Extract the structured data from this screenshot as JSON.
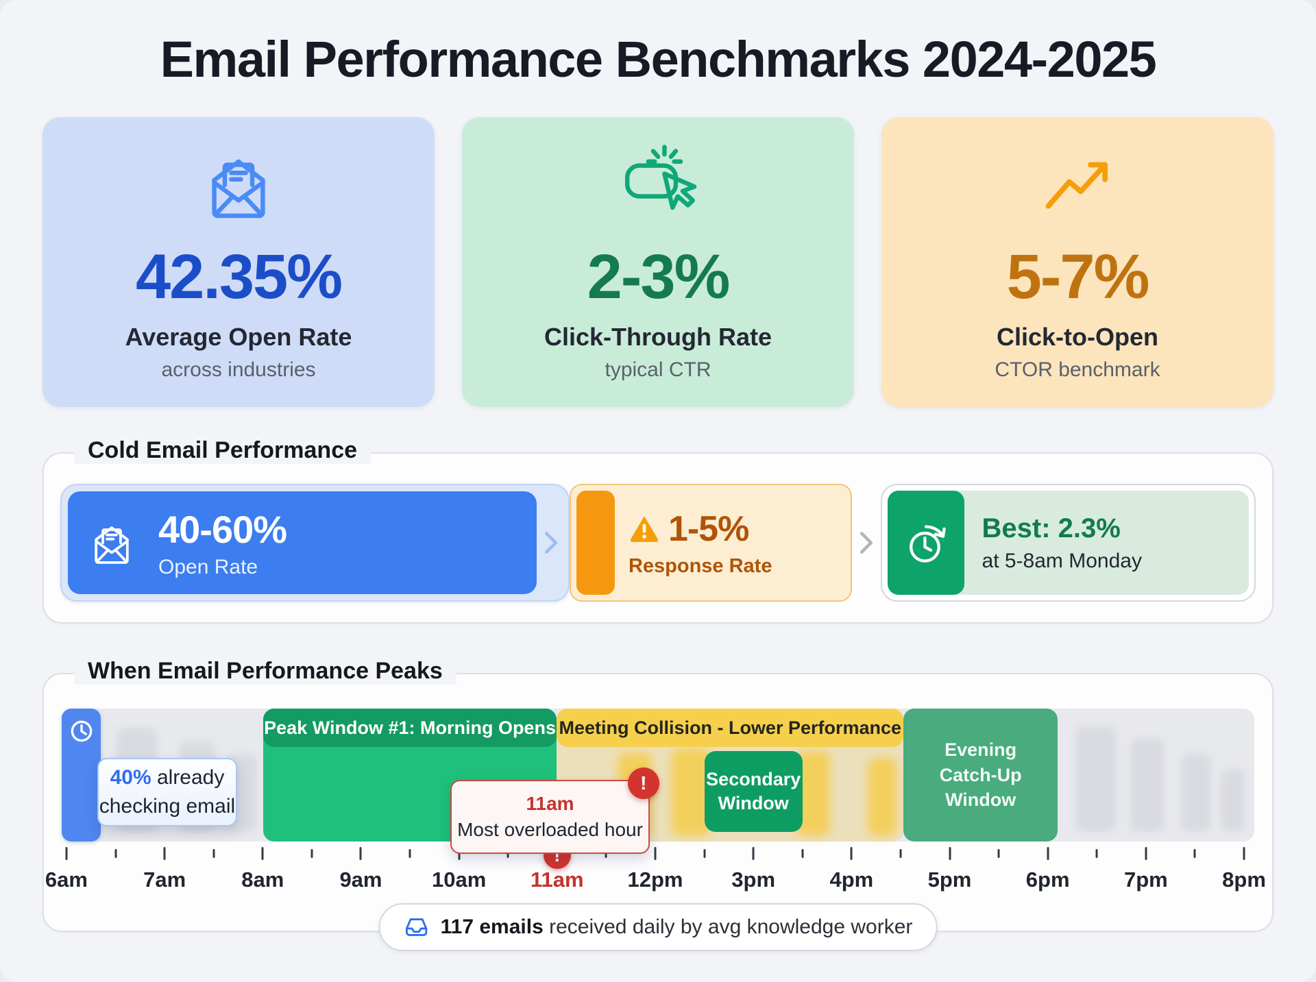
{
  "title": "Email Performance Benchmarks 2024-2025",
  "stats": [
    {
      "icon": "open-envelope-icon",
      "value": "42.35%",
      "label": "Average Open Rate",
      "sub": "across industries"
    },
    {
      "icon": "cursor-click-icon",
      "value": "2-3%",
      "label": "Click-Through Rate",
      "sub": "typical CTR"
    },
    {
      "icon": "trending-up-icon",
      "value": "5-7%",
      "label": "Click-to-Open",
      "sub": "CTOR benchmark"
    }
  ],
  "cold_email": {
    "section_title": "Cold Email Performance",
    "open_rate": {
      "icon": "open-envelope-icon",
      "value": "40-60%",
      "label": "Open Rate"
    },
    "response_rate": {
      "icon": "warning-triangle-icon",
      "value": "1-5%",
      "label": "Response Rate"
    },
    "best_time": {
      "icon": "clock-history-icon",
      "value": "Best: 2.3%",
      "label": "at 5-8am Monday"
    }
  },
  "peaks": {
    "section_title": "When Email Performance Peaks",
    "morning_note": {
      "highlight": "40%",
      "text": "already checking email",
      "icon": "clock-icon"
    },
    "peak_window_1": "Peak Window #1: Morning Opens",
    "collision": "Meeting Collision - Lower Performance",
    "overloaded": {
      "time": "11am",
      "text": "Most overloaded hour",
      "badge": "!"
    },
    "secondary": "Secondary Window",
    "evening": "Evening Catch-Up Window",
    "axis": {
      "labels": [
        "6am",
        "7am",
        "8am",
        "9am",
        "10am",
        "11am",
        "12pm",
        "3pm",
        "4pm",
        "5pm",
        "6pm",
        "7pm",
        "8pm"
      ],
      "highlighted_label": "11am",
      "minor_ticks_per_hour": 1
    },
    "footer": {
      "icon": "inbox-icon",
      "bold": "117 emails",
      "text": "received daily by avg knowledge worker"
    }
  },
  "chart_data": {
    "type": "timeline",
    "title": "When Email Performance Peaks",
    "x": [
      "6am",
      "7am",
      "8am",
      "9am",
      "10am",
      "11am",
      "12pm",
      "3pm",
      "4pm",
      "5pm",
      "6pm",
      "7pm",
      "8pm"
    ],
    "annotations": [
      {
        "label": "40% already checking email",
        "at": "6am"
      },
      {
        "label": "Peak Window #1: Morning Opens",
        "from": "8am",
        "to": "11am",
        "type": "peak"
      },
      {
        "label": "11am Most overloaded hour",
        "at": "11am",
        "type": "alert"
      },
      {
        "label": "Meeting Collision - Lower Performance",
        "from": "11am",
        "to": "4:30pm",
        "type": "lower"
      },
      {
        "label": "Secondary Window",
        "from": "2:30pm",
        "to": "3:30pm",
        "type": "peak"
      },
      {
        "label": "Evening Catch-Up Window",
        "from": "4:30pm",
        "to": "6pm",
        "type": "peak"
      }
    ],
    "footnote": "117 emails received daily by avg knowledge worker"
  },
  "colors": {
    "page_bg": "#f2f4f7",
    "blue_accent": "#1c4dc9",
    "blue_icon": "#4a8bf5",
    "blue_card": "#cfdcf7",
    "green_accent": "#167a50",
    "green_icon": "#10a878",
    "green_card": "#c9ecd9",
    "orange_accent": "#bf7310",
    "orange_icon": "#f59e0b",
    "orange_card": "#fce4bc",
    "cold_blue": "#3c7df0",
    "cold_orange": "#f6980f",
    "cold_green": "#0ea36a",
    "peak_green": "#1ec07c",
    "peak_green_dark": "#149a63",
    "collision_yellow": "#f6cf4d",
    "alert_red": "#d2352e",
    "track_gray": "#e8e9ed"
  }
}
